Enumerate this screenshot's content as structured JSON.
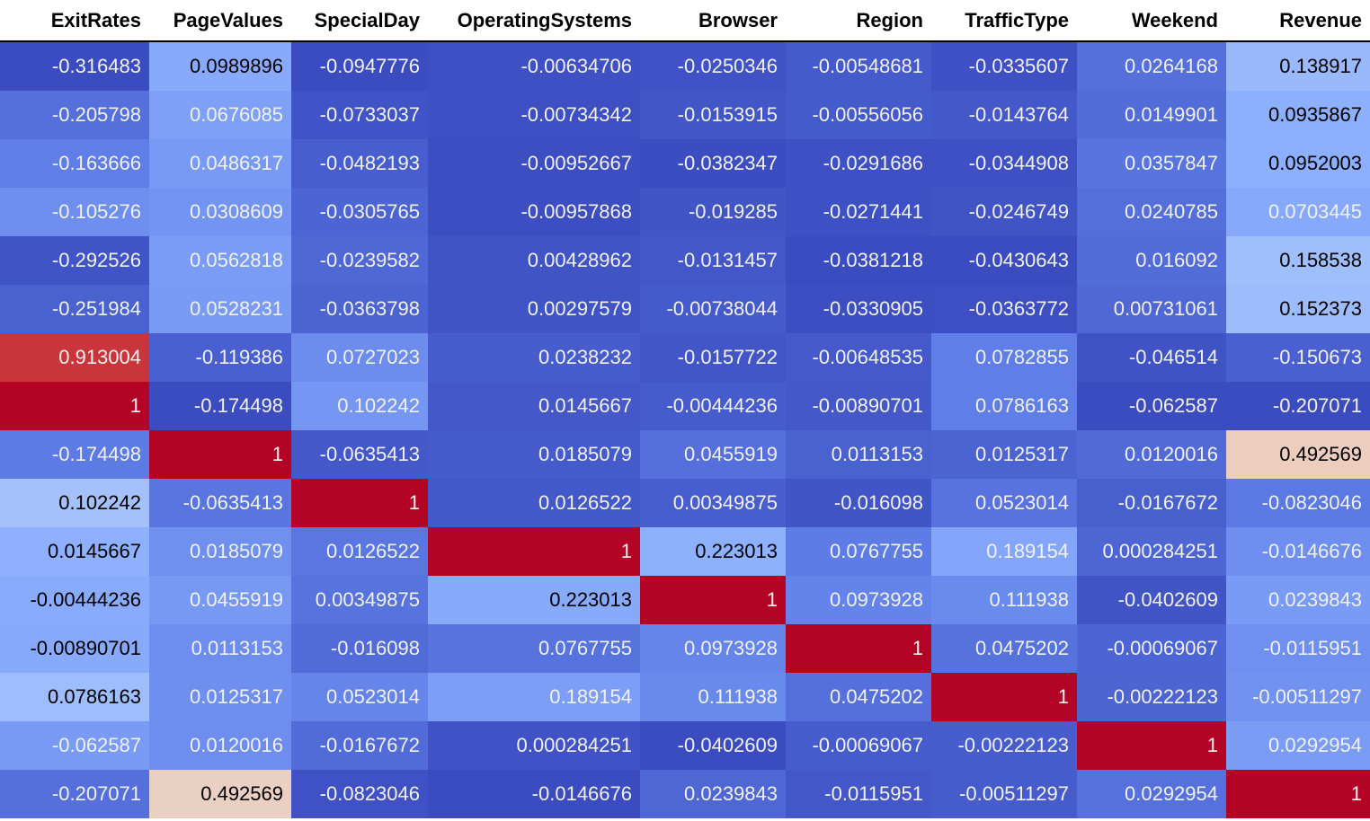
{
  "chart_data": {
    "type": "heatmap",
    "columns": [
      "ExitRates",
      "PageValues",
      "SpecialDay",
      "OperatingSystems",
      "Browser",
      "Region",
      "TrafficType",
      "Weekend",
      "Revenue"
    ],
    "colormap": "coolwarm",
    "color_range": [
      -0.316483,
      1
    ],
    "rows": [
      [
        "-0.316483",
        "0.0989896",
        "-0.0947776",
        "-0.00634706",
        "-0.0250346",
        "-0.00548681",
        "-0.0335607",
        "0.0264168",
        "0.138917"
      ],
      [
        "-0.205798",
        "0.0676085",
        "-0.0733037",
        "-0.00734342",
        "-0.0153915",
        "-0.00556056",
        "-0.0143764",
        "0.0149901",
        "0.0935867"
      ],
      [
        "-0.163666",
        "0.0486317",
        "-0.0482193",
        "-0.00952667",
        "-0.0382347",
        "-0.0291686",
        "-0.0344908",
        "0.0357847",
        "0.0952003"
      ],
      [
        "-0.105276",
        "0.0308609",
        "-0.0305765",
        "-0.00957868",
        "-0.019285",
        "-0.0271441",
        "-0.0246749",
        "0.0240785",
        "0.0703445"
      ],
      [
        "-0.292526",
        "0.0562818",
        "-0.0239582",
        "0.00428962",
        "-0.0131457",
        "-0.0381218",
        "-0.0430643",
        "0.016092",
        "0.158538"
      ],
      [
        "-0.251984",
        "0.0528231",
        "-0.0363798",
        "0.00297579",
        "-0.00738044",
        "-0.0330905",
        "-0.0363772",
        "0.00731061",
        "0.152373"
      ],
      [
        "0.913004",
        "-0.119386",
        "0.0727023",
        "0.0238232",
        "-0.0157722",
        "-0.00648535",
        "0.0782855",
        "-0.046514",
        "-0.150673"
      ],
      [
        "1",
        "-0.174498",
        "0.102242",
        "0.0145667",
        "-0.00444236",
        "-0.00890701",
        "0.0786163",
        "-0.062587",
        "-0.207071"
      ],
      [
        "-0.174498",
        "1",
        "-0.0635413",
        "0.0185079",
        "0.0455919",
        "0.0113153",
        "0.0125317",
        "0.0120016",
        "0.492569"
      ],
      [
        "0.102242",
        "-0.0635413",
        "1",
        "0.0126522",
        "0.00349875",
        "-0.016098",
        "0.0523014",
        "-0.0167672",
        "-0.0823046"
      ],
      [
        "0.0145667",
        "0.0185079",
        "0.0126522",
        "1",
        "0.223013",
        "0.0767755",
        "0.189154",
        "0.000284251",
        "-0.0146676"
      ],
      [
        "-0.00444236",
        "0.0455919",
        "0.00349875",
        "0.223013",
        "1",
        "0.0973928",
        "0.111938",
        "-0.0402609",
        "0.0239843"
      ],
      [
        "-0.00890701",
        "0.0113153",
        "-0.016098",
        "0.0767755",
        "0.0973928",
        "1",
        "0.0475202",
        "-0.00069067",
        "-0.0115951"
      ],
      [
        "0.0786163",
        "0.0125317",
        "0.0523014",
        "0.189154",
        "0.111938",
        "0.0475202",
        "1",
        "-0.00222123",
        "-0.00511297"
      ],
      [
        "-0.062587",
        "0.0120016",
        "-0.0167672",
        "0.000284251",
        "-0.0402609",
        "-0.00069067",
        "-0.00222123",
        "1",
        "0.0292954"
      ],
      [
        "-0.207071",
        "0.492569",
        "-0.0823046",
        "-0.0146676",
        "0.0239843",
        "-0.0115951",
        "-0.00511297",
        "0.0292954",
        "1"
      ]
    ]
  }
}
